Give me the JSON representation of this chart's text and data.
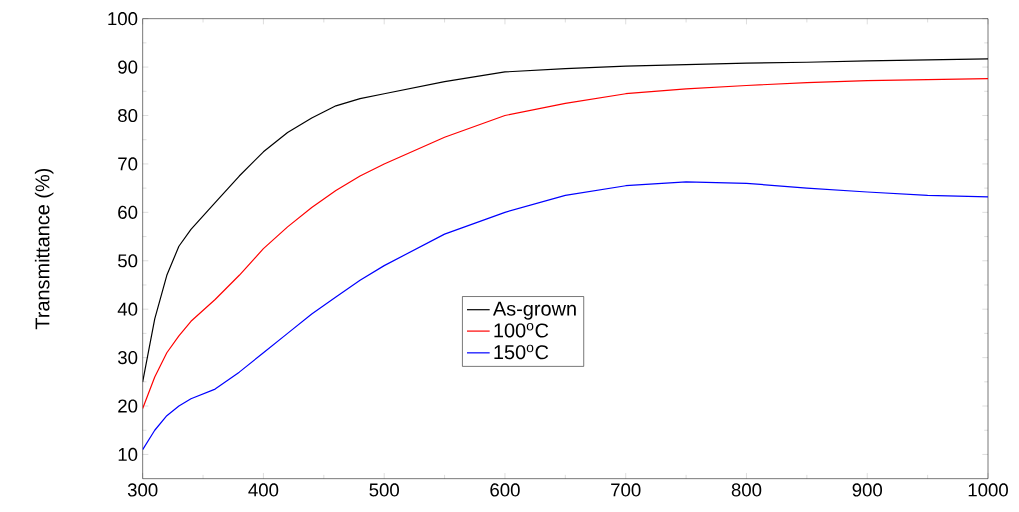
{
  "chart_data": {
    "type": "line",
    "ylabel": "Transmittance (%)",
    "xlim": [
      300,
      1000
    ],
    "ylim": [
      5,
      100
    ],
    "xticks": [
      300,
      400,
      500,
      600,
      700,
      800,
      900,
      1000
    ],
    "yticks": [
      10,
      20,
      30,
      40,
      50,
      60,
      70,
      80,
      90,
      100
    ],
    "x": [
      300,
      310,
      320,
      330,
      340,
      360,
      380,
      400,
      420,
      440,
      460,
      480,
      500,
      550,
      600,
      650,
      700,
      750,
      800,
      850,
      900,
      950,
      1000
    ],
    "legend": "center",
    "grid": false,
    "marker": "none",
    "line_style": "solid",
    "series": [
      {
        "name": "As-grown",
        "color": "#000000",
        "values": [
          25,
          38,
          47,
          53,
          56.5,
          62,
          67.5,
          72.5,
          76.5,
          79.5,
          82,
          83.5,
          84.5,
          87,
          89,
          89.7,
          90.2,
          90.5,
          90.8,
          91,
          91.3,
          91.5,
          91.7
        ]
      },
      {
        "name": "100$^{o}$C",
        "color": "#ff0000",
        "values": [
          19.5,
          26,
          31,
          34.5,
          37.5,
          42,
          47,
          52.5,
          57,
          61,
          64.5,
          67.5,
          70,
          75.5,
          80,
          82.5,
          84.5,
          85.5,
          86.2,
          86.8,
          87.2,
          87.4,
          87.6
        ]
      },
      {
        "name": "150$^{o}$C",
        "color": "#0000ff",
        "values": [
          11,
          15,
          18,
          20,
          21.5,
          23.5,
          27,
          31,
          35,
          39,
          42.5,
          46,
          49,
          55.5,
          60,
          63.5,
          65.5,
          66.3,
          66,
          65,
          64.2,
          63.5,
          63.2
        ]
      }
    ]
  }
}
